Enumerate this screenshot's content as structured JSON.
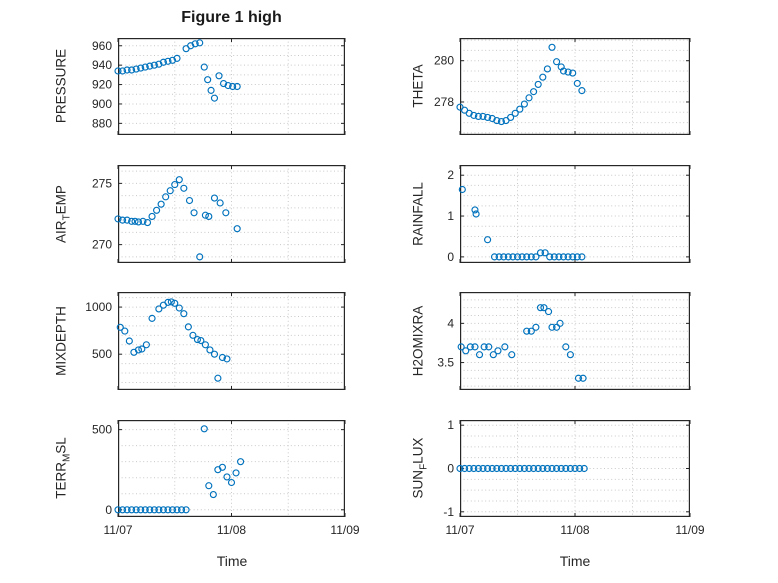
{
  "title": "Figure 1 high",
  "xlabel": "Time",
  "accent_color": "#0072BD",
  "grid_color": "#c9c9c9",
  "axis_color": "#262626",
  "x_unit": "days since 11/07",
  "chart_data": [
    {
      "type": "scatter",
      "name": "PRESSURE",
      "ylabel": {
        "pre": "PRESSURE",
        "sub": "",
        "post": ""
      },
      "x": [
        0,
        0.04,
        0.08,
        0.12,
        0.16,
        0.2,
        0.24,
        0.28,
        0.32,
        0.36,
        0.4,
        0.44,
        0.48,
        0.52,
        0.6,
        0.64,
        0.68,
        0.72,
        0.76,
        0.79,
        0.82,
        0.85,
        0.89,
        0.93,
        0.97,
        1.01,
        1.05
      ],
      "y": [
        934,
        934,
        935,
        935,
        936,
        937,
        938,
        939,
        940,
        941,
        943,
        944,
        945,
        947,
        957,
        960,
        962,
        963,
        938,
        925,
        914,
        906,
        929,
        921,
        919,
        918,
        918
      ],
      "ylim": [
        868,
        968
      ],
      "yticks": [
        880,
        900,
        920,
        940,
        960
      ],
      "ytick_labels": [
        "880",
        "900",
        "920",
        "940",
        "960"
      ],
      "y_minor_step": 10,
      "xlim": [
        0,
        2
      ],
      "xticks": [
        0,
        1,
        2
      ],
      "xtick_labels": [
        "11/07",
        "11/08",
        "11/09"
      ],
      "x_minor_step": 0.5,
      "show_x_labels": false
    },
    {
      "type": "scatter",
      "name": "THETA",
      "ylabel": {
        "pre": "THETA",
        "sub": "",
        "post": ""
      },
      "x": [
        0,
        0.04,
        0.08,
        0.12,
        0.16,
        0.2,
        0.24,
        0.28,
        0.32,
        0.36,
        0.4,
        0.44,
        0.48,
        0.52,
        0.56,
        0.6,
        0.64,
        0.68,
        0.72,
        0.76,
        0.8,
        0.84,
        0.88,
        0.9,
        0.94,
        0.98,
        1.02,
        1.06
      ],
      "y": [
        277.75,
        277.6,
        277.45,
        277.35,
        277.3,
        277.3,
        277.25,
        277.2,
        277.1,
        277.05,
        277.1,
        277.25,
        277.45,
        277.65,
        277.9,
        278.2,
        278.5,
        278.85,
        279.2,
        279.6,
        280.65,
        279.95,
        279.7,
        279.5,
        279.45,
        279.4,
        278.9,
        278.55
      ],
      "ylim": [
        276.4,
        281.1
      ],
      "yticks": [
        278,
        280
      ],
      "ytick_labels": [
        "278",
        "280"
      ],
      "y_minor_step": 0.5,
      "xlim": [
        0,
        2
      ],
      "xticks": [
        0,
        1,
        2
      ],
      "xtick_labels": [
        "11/07",
        "11/08",
        "11/09"
      ],
      "x_minor_step": 0.5,
      "show_x_labels": false
    },
    {
      "type": "scatter",
      "name": "AIR_TEMP",
      "ylabel": {
        "pre": "AIR",
        "sub": "T",
        "post": "EMP"
      },
      "x": [
        0,
        0.04,
        0.08,
        0.12,
        0.15,
        0.18,
        0.22,
        0.26,
        0.3,
        0.34,
        0.38,
        0.42,
        0.46,
        0.5,
        0.54,
        0.58,
        0.63,
        0.67,
        0.72,
        0.77,
        0.8,
        0.85,
        0.9,
        0.95,
        1.05
      ],
      "y": [
        272.1,
        272.0,
        272.0,
        271.9,
        271.9,
        271.85,
        271.9,
        271.8,
        272.3,
        272.8,
        273.3,
        273.9,
        274.4,
        274.9,
        275.3,
        274.6,
        273.6,
        272.6,
        269.0,
        272.4,
        272.3,
        273.8,
        273.4,
        272.6,
        271.3
      ],
      "ylim": [
        268.5,
        276.5
      ],
      "yticks": [
        270,
        275
      ],
      "ytick_labels": [
        "270",
        "275"
      ],
      "y_minor_step": 1,
      "xlim": [
        0,
        2
      ],
      "xticks": [
        0,
        1,
        2
      ],
      "xtick_labels": [
        "11/07",
        "11/08",
        "11/09"
      ],
      "x_minor_step": 0.5,
      "show_x_labels": false
    },
    {
      "type": "scatter",
      "name": "RAINFALL",
      "ylabel": {
        "pre": "RAINFALL",
        "sub": "",
        "post": ""
      },
      "x": [
        0.02,
        0.13,
        0.14,
        0.24,
        0.3,
        0.34,
        0.38,
        0.42,
        0.46,
        0.5,
        0.54,
        0.58,
        0.62,
        0.66,
        0.7,
        0.74,
        0.78,
        0.82,
        0.86,
        0.9,
        0.94,
        0.98,
        1.02,
        1.06
      ],
      "y": [
        1.65,
        1.15,
        1.05,
        0.42,
        0,
        0,
        0,
        0,
        0,
        0,
        0,
        0,
        0,
        0,
        0.1,
        0.1,
        0,
        0,
        0,
        0,
        0,
        0,
        0,
        0
      ],
      "ylim": [
        -0.15,
        2.25
      ],
      "yticks": [
        0,
        1,
        2
      ],
      "ytick_labels": [
        "0",
        "1",
        "2"
      ],
      "y_minor_step": 0.25,
      "xlim": [
        0,
        2
      ],
      "xticks": [
        0,
        1,
        2
      ],
      "xtick_labels": [
        "11/07",
        "11/08",
        "11/09"
      ],
      "x_minor_step": 0.5,
      "show_x_labels": false
    },
    {
      "type": "scatter",
      "name": "MIXDEPTH",
      "ylabel": {
        "pre": "MIXDEPTH",
        "sub": "",
        "post": ""
      },
      "x": [
        0.02,
        0.06,
        0.1,
        0.14,
        0.18,
        0.21,
        0.25,
        0.3,
        0.36,
        0.4,
        0.44,
        0.47,
        0.5,
        0.54,
        0.58,
        0.62,
        0.66,
        0.7,
        0.73,
        0.77,
        0.81,
        0.85,
        0.88,
        0.92,
        0.96
      ],
      "y": [
        785,
        745,
        640,
        520,
        545,
        555,
        600,
        880,
        980,
        1020,
        1050,
        1055,
        1040,
        990,
        930,
        790,
        700,
        655,
        645,
        600,
        545,
        500,
        245,
        465,
        450
      ],
      "ylim": [
        120,
        1160
      ],
      "yticks": [
        500,
        1000
      ],
      "ytick_labels": [
        "500",
        "1000"
      ],
      "y_minor_step": 100,
      "xlim": [
        0,
        2
      ],
      "xticks": [
        0,
        1,
        2
      ],
      "xtick_labels": [
        "11/07",
        "11/08",
        "11/09"
      ],
      "x_minor_step": 0.5,
      "show_x_labels": false
    },
    {
      "type": "scatter",
      "name": "H2OMIXRA",
      "ylabel": {
        "pre": "H2OMIXRA",
        "sub": "",
        "post": ""
      },
      "x": [
        0.01,
        0.05,
        0.09,
        0.13,
        0.17,
        0.21,
        0.25,
        0.29,
        0.33,
        0.39,
        0.45,
        0.58,
        0.62,
        0.66,
        0.7,
        0.73,
        0.77,
        0.8,
        0.84,
        0.87,
        0.92,
        0.96,
        1.03,
        1.07
      ],
      "y": [
        3.7,
        3.65,
        3.7,
        3.7,
        3.6,
        3.7,
        3.7,
        3.6,
        3.65,
        3.7,
        3.6,
        3.9,
        3.9,
        3.95,
        4.2,
        4.2,
        4.15,
        3.95,
        3.95,
        4.0,
        3.7,
        3.6,
        3.3,
        3.3
      ],
      "ylim": [
        3.15,
        4.4
      ],
      "yticks": [
        3.5,
        4
      ],
      "ytick_labels": [
        "3.5",
        "4"
      ],
      "y_minor_step": 0.1,
      "xlim": [
        0,
        2
      ],
      "xticks": [
        0,
        1,
        2
      ],
      "xtick_labels": [
        "11/07",
        "11/08",
        "11/09"
      ],
      "x_minor_step": 0.5,
      "show_x_labels": false
    },
    {
      "type": "scatter",
      "name": "TERR_MSL",
      "ylabel": {
        "pre": "TERR",
        "sub": "M",
        "post": "SL"
      },
      "x": [
        0,
        0.04,
        0.08,
        0.12,
        0.16,
        0.2,
        0.24,
        0.28,
        0.32,
        0.36,
        0.4,
        0.44,
        0.48,
        0.52,
        0.56,
        0.6,
        0.76,
        0.8,
        0.84,
        0.88,
        0.92,
        0.96,
        1.0,
        1.04,
        1.08
      ],
      "y": [
        0,
        0,
        0,
        0,
        0,
        0,
        0,
        0,
        0,
        0,
        0,
        0,
        0,
        0,
        0,
        0,
        505,
        150,
        95,
        250,
        265,
        205,
        170,
        230,
        300
      ],
      "ylim": [
        -45,
        560
      ],
      "yticks": [
        0,
        500
      ],
      "ytick_labels": [
        "0",
        "500"
      ],
      "y_minor_step": 100,
      "xlim": [
        0,
        2
      ],
      "xticks": [
        0,
        1,
        2
      ],
      "xtick_labels": [
        "11/07",
        "11/08",
        "11/09"
      ],
      "x_minor_step": 0.5,
      "show_x_labels": true
    },
    {
      "type": "scatter",
      "name": "SUN_FLUX",
      "ylabel": {
        "pre": "SUN",
        "sub": "F",
        "post": "LUX"
      },
      "x": [
        0,
        0.04,
        0.08,
        0.12,
        0.16,
        0.2,
        0.24,
        0.28,
        0.32,
        0.36,
        0.4,
        0.44,
        0.48,
        0.52,
        0.56,
        0.6,
        0.64,
        0.68,
        0.72,
        0.76,
        0.8,
        0.84,
        0.88,
        0.92,
        0.96,
        1.0,
        1.04,
        1.08
      ],
      "y": [
        0,
        0,
        0,
        0,
        0,
        0,
        0,
        0,
        0,
        0,
        0,
        0,
        0,
        0,
        0,
        0,
        0,
        0,
        0,
        0,
        0,
        0,
        0,
        0,
        0,
        0,
        0,
        0
      ],
      "ylim": [
        -1.12,
        1.12
      ],
      "yticks": [
        -1,
        0,
        1
      ],
      "ytick_labels": [
        "-1",
        "0",
        "1"
      ],
      "y_minor_step": 0.25,
      "xlim": [
        0,
        2
      ],
      "xticks": [
        0,
        1,
        2
      ],
      "xtick_labels": [
        "11/07",
        "11/08",
        "11/09"
      ],
      "x_minor_step": 0.5,
      "show_x_labels": true
    }
  ]
}
